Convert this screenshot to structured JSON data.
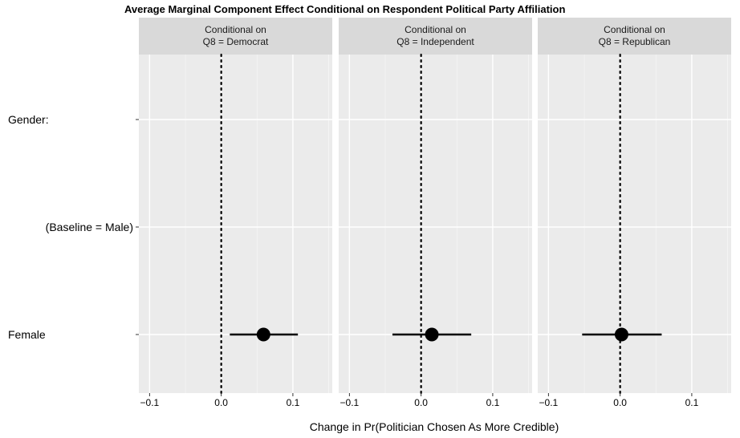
{
  "chart_data": {
    "type": "scatter",
    "title": "Average Marginal Component Effect Conditional on Respondent Political Party Affiliation",
    "xlabel": "Change in Pr(Politician Chosen As More Credible)",
    "ylabel": "",
    "xlim": [
      -0.115,
      0.155
    ],
    "x_ticks": [
      -0.1,
      0.0,
      0.1
    ],
    "x_tick_labels": [
      "−0.1",
      "0.0",
      "0.1"
    ],
    "y_categories": [
      "Gender:",
      "(Baseline = Male)",
      "Female"
    ],
    "reference_line": 0.0,
    "grid": true,
    "panels": [
      {
        "strip_line1": "Conditional on",
        "strip_line2": "Q8 = Democrat",
        "points": [
          {
            "category": "Female",
            "estimate": 0.059,
            "ci_low": 0.012,
            "ci_high": 0.107
          }
        ]
      },
      {
        "strip_line1": "Conditional on",
        "strip_line2": "Q8 = Independent",
        "points": [
          {
            "category": "Female",
            "estimate": 0.015,
            "ci_low": -0.04,
            "ci_high": 0.07
          }
        ]
      },
      {
        "strip_line1": "Conditional on",
        "strip_line2": "Q8 = Republican",
        "points": [
          {
            "category": "Female",
            "estimate": 0.002,
            "ci_low": -0.053,
            "ci_high": 0.058
          }
        ]
      }
    ]
  }
}
